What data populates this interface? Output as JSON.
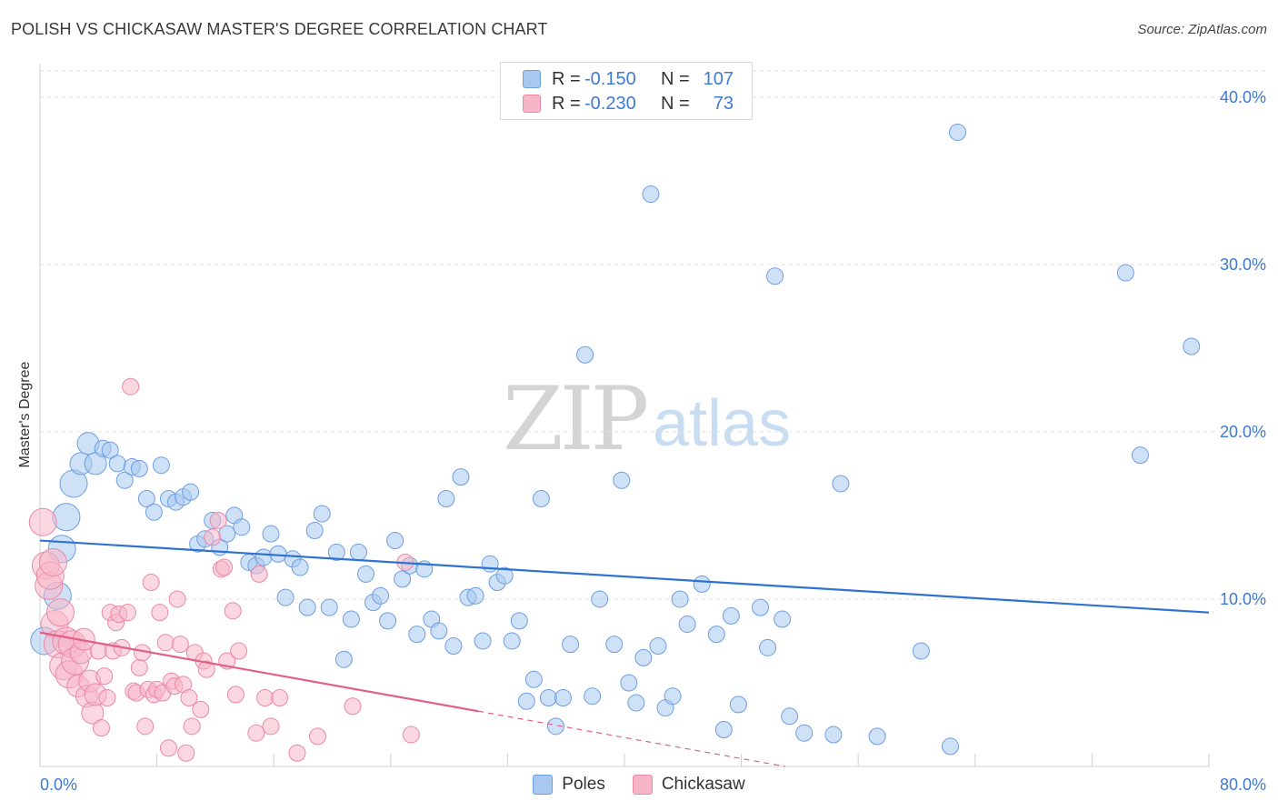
{
  "chart_data": {
    "type": "scatter",
    "title": "POLISH VS CHICKASAW MASTER'S DEGREE CORRELATION CHART",
    "source": "Source: ZipAtlas.com",
    "ylabel": "Master's Degree",
    "xlim": [
      0,
      80
    ],
    "ylim": [
      0,
      42
    ],
    "x_tick_labels": [
      "0.0%",
      "80.0%"
    ],
    "y_ticks": [
      10,
      20,
      30,
      40
    ],
    "y_tick_labels": [
      "10.0%",
      "20.0%",
      "30.0%",
      "40.0%"
    ],
    "grid": true,
    "watermark": {
      "zip": "ZIP",
      "atlas": "atlas"
    },
    "legend": {
      "r_label": "R =",
      "n_label": "N =",
      "entries": [
        {
          "r": "-0.150",
          "n": "107",
          "color": "#a8c8f0"
        },
        {
          "r": "-0.230",
          "n": "73",
          "color": "#f7b6c8"
        }
      ]
    },
    "series": [
      {
        "name": "Poles",
        "color": "#a8c8f0",
        "stroke": "#6d9ee0",
        "line_color": "#2f73d0",
        "trend": {
          "x0": 0,
          "y0": 13.5,
          "x1": 80,
          "y1": 9.2
        },
        "points": [
          [
            0.3,
            7.5
          ],
          [
            1.2,
            10.2
          ],
          [
            1.5,
            13.0
          ],
          [
            1.8,
            14.9
          ],
          [
            2.3,
            16.9
          ],
          [
            2.8,
            18.1
          ],
          [
            3.3,
            19.3
          ],
          [
            3.8,
            18.1
          ],
          [
            4.3,
            19.0
          ],
          [
            4.8,
            18.9
          ],
          [
            5.3,
            18.1
          ],
          [
            5.8,
            17.1
          ],
          [
            6.3,
            17.9
          ],
          [
            6.8,
            17.8
          ],
          [
            7.3,
            16.0
          ],
          [
            7.8,
            15.2
          ],
          [
            8.3,
            18.0
          ],
          [
            8.8,
            16.0
          ],
          [
            9.3,
            15.8
          ],
          [
            9.8,
            16.1
          ],
          [
            10.3,
            16.4
          ],
          [
            10.8,
            13.3
          ],
          [
            11.3,
            13.6
          ],
          [
            11.8,
            14.7
          ],
          [
            12.3,
            13.1
          ],
          [
            12.8,
            13.9
          ],
          [
            13.3,
            15.0
          ],
          [
            13.8,
            14.3
          ],
          [
            14.3,
            12.2
          ],
          [
            14.8,
            12.0
          ],
          [
            15.3,
            12.5
          ],
          [
            15.8,
            13.9
          ],
          [
            16.3,
            12.7
          ],
          [
            16.8,
            10.1
          ],
          [
            17.3,
            12.4
          ],
          [
            17.8,
            11.9
          ],
          [
            18.3,
            9.5
          ],
          [
            18.8,
            14.1
          ],
          [
            19.3,
            15.1
          ],
          [
            19.8,
            9.5
          ],
          [
            20.3,
            12.8
          ],
          [
            20.8,
            6.4
          ],
          [
            21.3,
            8.8
          ],
          [
            21.8,
            12.8
          ],
          [
            22.3,
            11.5
          ],
          [
            22.8,
            9.8
          ],
          [
            23.3,
            10.2
          ],
          [
            23.8,
            8.7
          ],
          [
            24.3,
            13.5
          ],
          [
            24.8,
            11.2
          ],
          [
            25.3,
            12.0
          ],
          [
            25.8,
            7.9
          ],
          [
            26.3,
            11.8
          ],
          [
            26.8,
            8.8
          ],
          [
            27.3,
            8.1
          ],
          [
            27.8,
            16.0
          ],
          [
            28.3,
            7.2
          ],
          [
            28.8,
            17.3
          ],
          [
            29.3,
            10.1
          ],
          [
            29.8,
            10.2
          ],
          [
            30.3,
            7.5
          ],
          [
            30.8,
            12.1
          ],
          [
            31.3,
            11.0
          ],
          [
            31.8,
            11.4
          ],
          [
            32.3,
            7.5
          ],
          [
            32.8,
            8.7
          ],
          [
            33.3,
            3.9
          ],
          [
            33.8,
            5.2
          ],
          [
            34.3,
            16.0
          ],
          [
            34.8,
            4.1
          ],
          [
            35.3,
            2.4
          ],
          [
            35.8,
            4.1
          ],
          [
            36.3,
            7.3
          ],
          [
            37.3,
            24.6
          ],
          [
            37.8,
            4.2
          ],
          [
            38.3,
            10.0
          ],
          [
            39.3,
            7.3
          ],
          [
            39.8,
            17.1
          ],
          [
            40.3,
            5.0
          ],
          [
            40.8,
            3.8
          ],
          [
            41.3,
            6.5
          ],
          [
            41.8,
            34.2
          ],
          [
            42.3,
            7.2
          ],
          [
            42.8,
            3.5
          ],
          [
            43.3,
            4.2
          ],
          [
            43.8,
            10.0
          ],
          [
            44.3,
            8.5
          ],
          [
            45.3,
            10.9
          ],
          [
            46.3,
            7.9
          ],
          [
            46.8,
            2.2
          ],
          [
            47.3,
            9.0
          ],
          [
            47.8,
            3.7
          ],
          [
            49.3,
            9.5
          ],
          [
            49.8,
            7.1
          ],
          [
            50.3,
            29.3
          ],
          [
            50.8,
            8.8
          ],
          [
            51.3,
            3.0
          ],
          [
            52.3,
            2.0
          ],
          [
            54.3,
            1.9
          ],
          [
            54.8,
            16.9
          ],
          [
            57.3,
            1.8
          ],
          [
            60.3,
            6.9
          ],
          [
            62.3,
            1.2
          ],
          [
            62.8,
            37.9
          ],
          [
            74.3,
            29.5
          ],
          [
            75.3,
            18.6
          ],
          [
            78.8,
            25.1
          ]
        ]
      },
      {
        "name": "Chickasaw",
        "color": "#f7b6c8",
        "stroke": "#e889a8",
        "line_color": "#e0608a",
        "trend": {
          "x0": 0,
          "y0": 8.0,
          "x1": 30,
          "y1": 3.3
        },
        "trend_dashed": {
          "x0": 30,
          "y0": 3.3,
          "x1": 51,
          "y1": 0.0
        },
        "points": [
          [
            0.2,
            14.6
          ],
          [
            0.4,
            12.0
          ],
          [
            0.6,
            10.8
          ],
          [
            0.7,
            11.4
          ],
          [
            0.9,
            12.2
          ],
          [
            1.0,
            8.5
          ],
          [
            1.2,
            7.3
          ],
          [
            1.4,
            9.2
          ],
          [
            1.6,
            6.0
          ],
          [
            1.8,
            7.5
          ],
          [
            2.0,
            5.5
          ],
          [
            2.2,
            7.3
          ],
          [
            2.4,
            6.3
          ],
          [
            2.6,
            4.8
          ],
          [
            2.8,
            6.8
          ],
          [
            3.0,
            7.6
          ],
          [
            3.2,
            4.2
          ],
          [
            3.4,
            5.1
          ],
          [
            3.6,
            3.2
          ],
          [
            3.8,
            4.3
          ],
          [
            4.0,
            6.9
          ],
          [
            4.2,
            2.3
          ],
          [
            4.4,
            5.4
          ],
          [
            4.6,
            4.1
          ],
          [
            4.8,
            9.2
          ],
          [
            5.0,
            6.9
          ],
          [
            5.2,
            8.6
          ],
          [
            5.4,
            9.1
          ],
          [
            5.6,
            7.1
          ],
          [
            6.0,
            9.2
          ],
          [
            6.2,
            22.7
          ],
          [
            6.4,
            4.5
          ],
          [
            6.6,
            4.4
          ],
          [
            6.8,
            5.9
          ],
          [
            7.0,
            6.8
          ],
          [
            7.2,
            2.4
          ],
          [
            7.4,
            4.6
          ],
          [
            7.6,
            11.0
          ],
          [
            7.8,
            4.3
          ],
          [
            8.0,
            4.6
          ],
          [
            8.2,
            9.2
          ],
          [
            8.4,
            4.4
          ],
          [
            8.6,
            7.4
          ],
          [
            8.8,
            1.1
          ],
          [
            9.0,
            5.1
          ],
          [
            9.2,
            4.8
          ],
          [
            9.4,
            10.0
          ],
          [
            9.6,
            7.3
          ],
          [
            9.8,
            4.9
          ],
          [
            10.0,
            0.8
          ],
          [
            10.2,
            4.1
          ],
          [
            10.4,
            2.4
          ],
          [
            10.6,
            6.8
          ],
          [
            11.0,
            3.4
          ],
          [
            11.2,
            6.3
          ],
          [
            11.4,
            5.8
          ],
          [
            11.8,
            13.7
          ],
          [
            12.2,
            14.7
          ],
          [
            12.4,
            11.8
          ],
          [
            12.6,
            11.9
          ],
          [
            12.8,
            6.3
          ],
          [
            13.2,
            9.3
          ],
          [
            13.4,
            4.3
          ],
          [
            13.6,
            6.9
          ],
          [
            14.8,
            2.0
          ],
          [
            15.0,
            11.5
          ],
          [
            15.4,
            4.1
          ],
          [
            15.8,
            2.4
          ],
          [
            16.4,
            4.1
          ],
          [
            17.6,
            0.8
          ],
          [
            19.0,
            1.8
          ],
          [
            21.4,
            3.6
          ],
          [
            25.0,
            12.2
          ],
          [
            25.4,
            1.9
          ]
        ]
      }
    ]
  }
}
